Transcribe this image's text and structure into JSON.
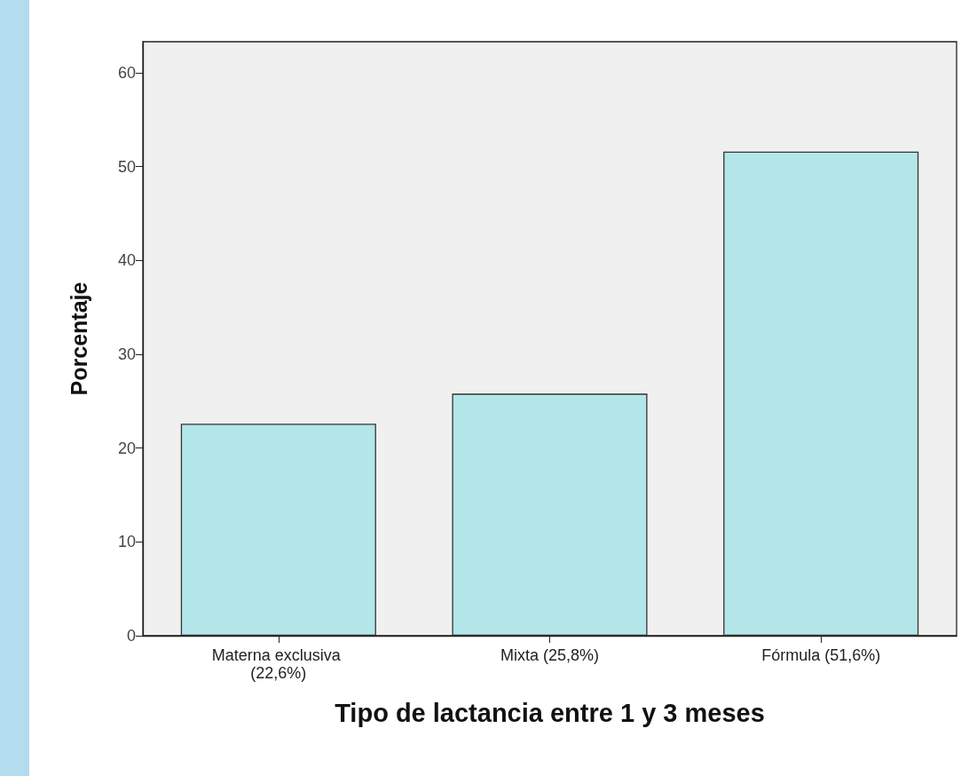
{
  "chart_data": {
    "type": "bar",
    "xlabel": "Tipo de lactancia entre 1 y 3 meses",
    "ylabel": "Porcentaje",
    "categories": [
      "Materna exclusiva (22,6%)",
      "Mixta (25,8%)",
      "Fórmula (51,6%)"
    ],
    "values": [
      22.6,
      25.8,
      51.6
    ],
    "color": "#b3e6e8",
    "ylim": [
      0,
      63.3
    ],
    "yticks": [
      0,
      10,
      20,
      30,
      40,
      50,
      60
    ],
    "grid": false
  }
}
